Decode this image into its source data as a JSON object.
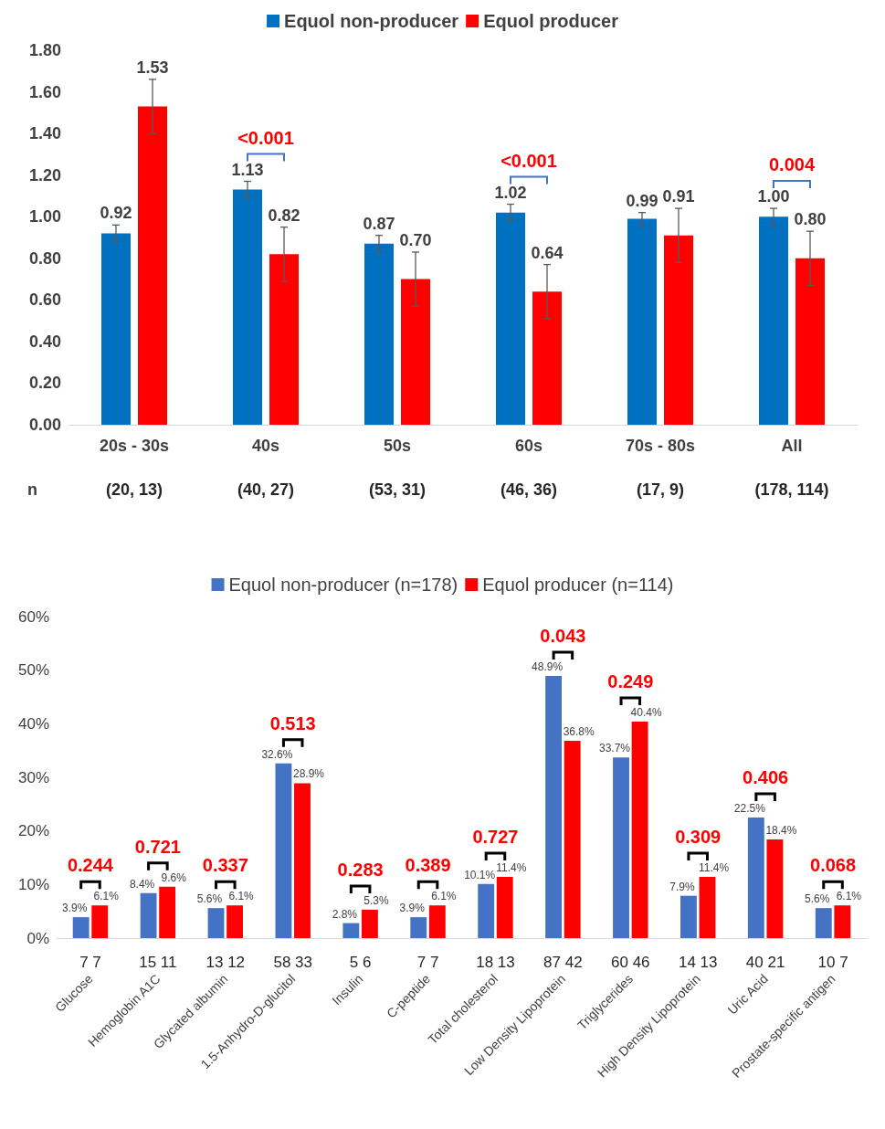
{
  "chart_data": [
    {
      "type": "bar",
      "categories": [
        "20s - 30s",
        "40s",
        "50s",
        "60s",
        "70s - 80s",
        "All"
      ],
      "ylim": [
        0,
        1.8
      ],
      "yticks": [
        {
          "value": 0,
          "label": "0.00"
        },
        {
          "value": 0.2,
          "label": "0.20"
        },
        {
          "value": 0.4,
          "label": "0.40"
        },
        {
          "value": 0.6,
          "label": "0.60"
        },
        {
          "value": 0.8,
          "label": "0.80"
        },
        {
          "value": 1,
          "label": "1.00"
        },
        {
          "value": 1.2,
          "label": "1.20"
        },
        {
          "value": 1.4,
          "label": "1.40"
        },
        {
          "value": 1.6,
          "label": "1.60"
        },
        {
          "value": 1.8,
          "label": "1.80"
        }
      ],
      "legend": "top",
      "series": [
        {
          "name": "Equol non-producer",
          "color": "#0070c0",
          "values": [
            0.92,
            1.13,
            0.87,
            1.02,
            0.99,
            1.0
          ],
          "errors": [
            0.04,
            0.04,
            0.04,
            0.04,
            0.03,
            0.04
          ],
          "value_labels": [
            "0.92",
            "1.13",
            "0.87",
            "1.02",
            "0.99",
            "1.00"
          ]
        },
        {
          "name": "Equol producer",
          "color": "#ff0000",
          "values": [
            1.53,
            0.82,
            0.7,
            0.64,
            0.91,
            0.8
          ],
          "errors": [
            0.13,
            0.13,
            0.13,
            0.13,
            0.13,
            0.13
          ],
          "value_labels": [
            "1.53",
            "0.82",
            "0.70",
            "0.64",
            "0.91",
            "0.80"
          ]
        }
      ],
      "annotations": [
        "<0.001",
        "<0.001",
        "0.004",
        "n",
        "(20, 13)",
        "(40, 27)",
        "(53, 31)",
        "(46, 36)",
        "(17, 9)",
        "(178, 114)"
      ]
    },
    {
      "type": "bar",
      "categories": [
        "Glucose",
        "Hemoglobin A1C",
        "Glycated albumin",
        "1.5-Anhydro-D-glucitol",
        "Insulin",
        "C-peptide",
        "Total cholesterol",
        "Low Density Lipoprotein",
        "Triglycerides",
        "High Density Lipoprotein",
        "Uric Acid",
        "Prostate-specific antigen"
      ],
      "ylim": [
        0,
        60
      ],
      "yticks": [
        {
          "value": 0,
          "label": "0%"
        },
        {
          "value": 10,
          "label": "10%"
        },
        {
          "value": 20,
          "label": "20%"
        },
        {
          "value": 30,
          "label": "30%"
        },
        {
          "value": 40,
          "label": "40%"
        },
        {
          "value": 50,
          "label": "50%"
        },
        {
          "value": 60,
          "label": "60%"
        }
      ],
      "legend": "top",
      "series": [
        {
          "name": "Equol non-producer (n=178)",
          "color": "#4472c4",
          "values": [
            3.9,
            8.4,
            5.6,
            32.6,
            2.8,
            3.9,
            10.1,
            48.9,
            33.7,
            7.9,
            22.5,
            5.6
          ],
          "value_labels": [
            "3.9%",
            "8.4%",
            "5.6%",
            "32.6%",
            "2.8%",
            "3.9%",
            "10.1%",
            "48.9%",
            "33.7%",
            "7.9%",
            "22.5%",
            "5.6%"
          ]
        },
        {
          "name": "Equol producer (n=114)",
          "color": "#ff0000",
          "values": [
            6.1,
            9.6,
            6.1,
            28.9,
            5.3,
            6.1,
            11.4,
            36.8,
            40.4,
            11.4,
            18.4,
            6.1
          ],
          "value_labels": [
            "6.1%",
            "9.6%",
            "6.1%",
            "28.9%",
            "5.3%",
            "6.1%",
            "11.4%",
            "36.8%",
            "40.4%",
            "11.4%",
            "18.4%",
            "6.1%"
          ]
        }
      ],
      "annotations": [
        "0.244",
        "0.721",
        "0.337",
        "0.513",
        "0.283",
        "0.389",
        "0.727",
        "0.043",
        "0.249",
        "0.309",
        "0.406",
        "0.068",
        "7 7",
        "15 11",
        "13 12",
        "58 33",
        "5 6",
        "7 7",
        "18 13",
        "87 42",
        "60 46",
        "14 13",
        "40 21",
        "10 7"
      ]
    }
  ]
}
